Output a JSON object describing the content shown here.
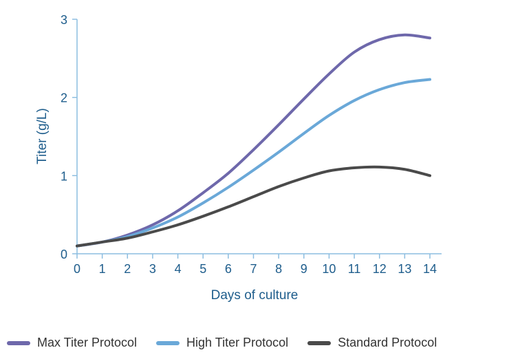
{
  "chart_data": {
    "type": "line",
    "title": "",
    "xlabel": "Days of culture",
    "ylabel": "Titer (g/L)",
    "xlim": [
      0,
      14
    ],
    "ylim": [
      0,
      3
    ],
    "x_ticks": [
      "0",
      "1",
      "2",
      "3",
      "4",
      "5",
      "6",
      "7",
      "8",
      "9",
      "10",
      "11",
      "12",
      "13",
      "14"
    ],
    "y_ticks": [
      "0",
      "1",
      "2",
      "3"
    ],
    "grid": false,
    "legend_position": "bottom",
    "x": [
      0,
      1,
      2,
      3,
      4,
      5,
      6,
      7,
      8,
      9,
      10,
      11,
      12,
      13,
      14
    ],
    "series": [
      {
        "name": "Max Titer Protocol",
        "color": "#6e68ab",
        "values": [
          0.1,
          0.15,
          0.24,
          0.37,
          0.55,
          0.78,
          1.03,
          1.33,
          1.65,
          1.98,
          2.3,
          2.58,
          2.74,
          2.8,
          2.76
        ]
      },
      {
        "name": "High Titer Protocol",
        "color": "#6aa8d8",
        "values": [
          0.1,
          0.15,
          0.22,
          0.33,
          0.47,
          0.65,
          0.85,
          1.07,
          1.3,
          1.54,
          1.77,
          1.96,
          2.1,
          2.19,
          2.23
        ]
      },
      {
        "name": "Standard Protocol",
        "color": "#4a4a4a",
        "values": [
          0.1,
          0.15,
          0.2,
          0.28,
          0.37,
          0.48,
          0.6,
          0.73,
          0.86,
          0.97,
          1.06,
          1.1,
          1.11,
          1.08,
          1.0
        ]
      }
    ]
  }
}
